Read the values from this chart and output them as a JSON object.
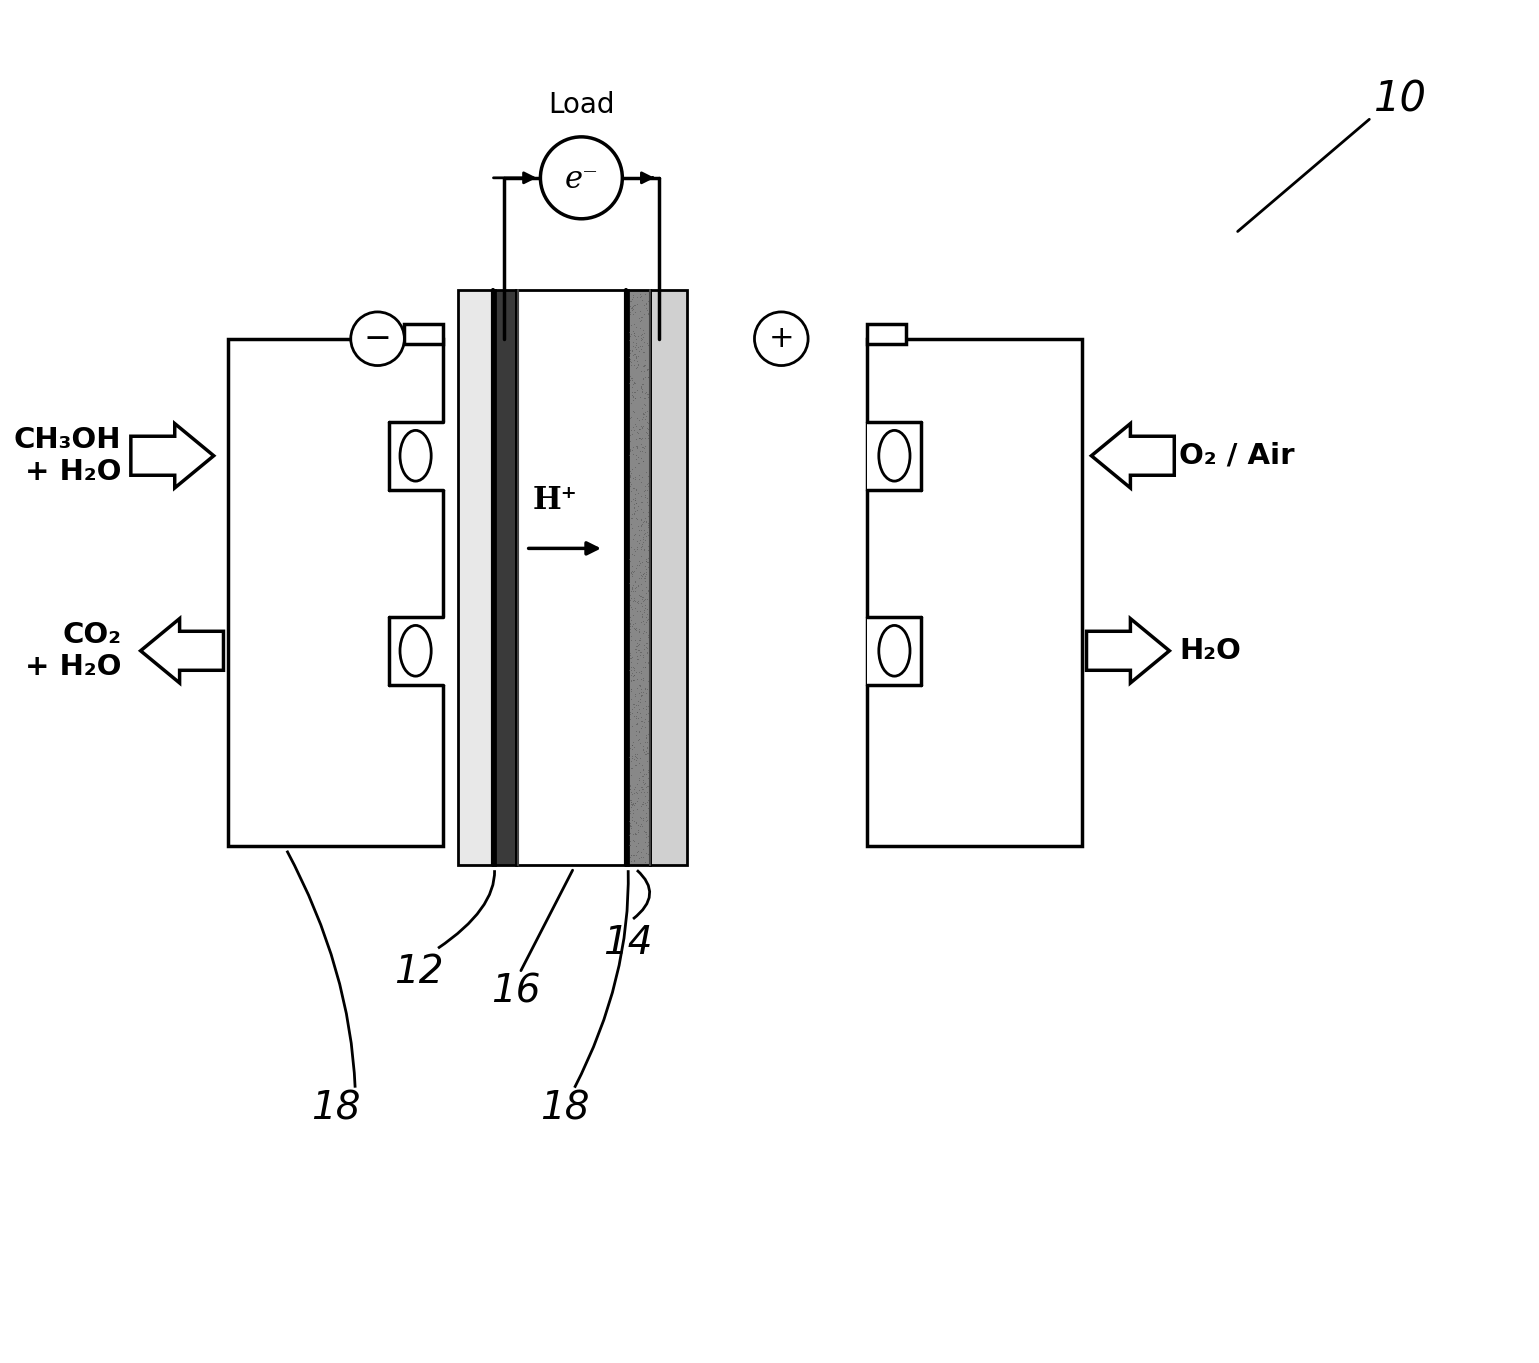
{
  "bg_color": "#ffffff",
  "line_color": "#000000",
  "fig_width": 15.39,
  "fig_height": 13.63,
  "label_10": "10",
  "label_12": "12",
  "label_14": "14",
  "label_16": "16",
  "label_18a": "18",
  "label_18b": "18",
  "label_load": "Load",
  "label_e": "e⁻",
  "label_hplus": "H⁺",
  "label_ch3oh": "CH₃OH\n+ H₂O",
  "label_co2": "CO₂\n+ H₂O",
  "label_o2": "O₂ / Air",
  "label_h2o": "H₂O",
  "label_neg": "−",
  "label_pos": "+"
}
